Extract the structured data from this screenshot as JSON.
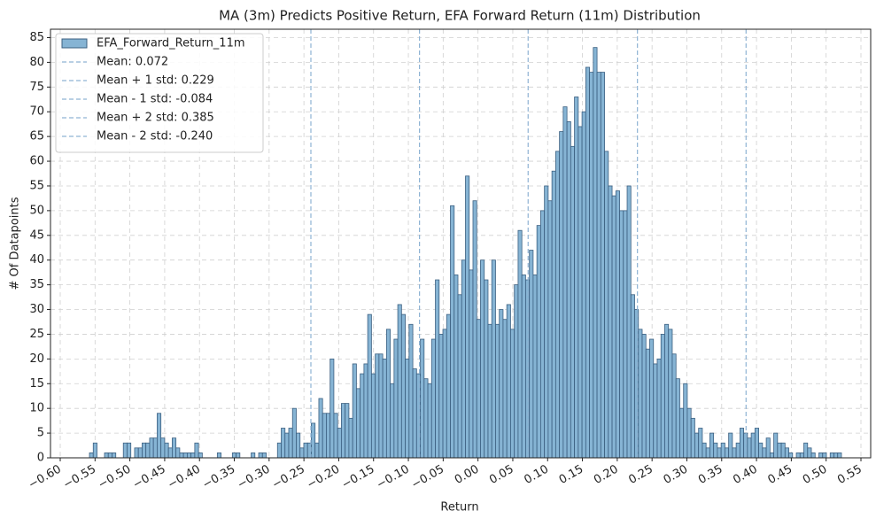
{
  "chart_data": {
    "type": "histogram",
    "title": "MA (3m) Predicts Positive Return, EFA Forward Return (11m) Distribution",
    "x_label": "Return",
    "y_label": "# Of Datapoints",
    "series": [
      {
        "name": "EFA_Forward_Return_11m",
        "color": "#86b4d4",
        "edgecolor": "#3b5f80",
        "bins": [
          -0.558,
          -0.5526,
          -0.5472,
          -0.5418,
          -0.5364,
          -0.531,
          -0.5256,
          -0.5202,
          -0.5148,
          -0.5094,
          -0.504,
          -0.4986,
          -0.4932,
          -0.4878,
          -0.4824,
          -0.477,
          -0.4716,
          -0.4662,
          -0.4608,
          -0.4554,
          -0.45,
          -0.4446,
          -0.4392,
          -0.4338,
          -0.4284,
          -0.423,
          -0.4176,
          -0.4122,
          -0.4068,
          -0.4014,
          -0.396,
          -0.3906,
          -0.3852,
          -0.3798,
          -0.3744,
          -0.369,
          -0.3636,
          -0.3582,
          -0.3528,
          -0.3474,
          -0.342,
          -0.3366,
          -0.3312,
          -0.3258,
          -0.3204,
          -0.315,
          -0.3096,
          -0.3042,
          -0.2988,
          -0.2934,
          -0.288,
          -0.2826,
          -0.2772,
          -0.2718,
          -0.2664,
          -0.261,
          -0.2556,
          -0.2502,
          -0.2448,
          -0.2394,
          -0.234,
          -0.2286,
          -0.2232,
          -0.2178,
          -0.2124,
          -0.207,
          -0.2016,
          -0.1962,
          -0.1908,
          -0.1854,
          -0.18,
          -0.1746,
          -0.1692,
          -0.1638,
          -0.1584,
          -0.153,
          -0.1476,
          -0.1422,
          -0.1368,
          -0.1314,
          -0.126,
          -0.1206,
          -0.1152,
          -0.1098,
          -0.1044,
          -0.099,
          -0.0936,
          -0.0882,
          -0.0828,
          -0.0774,
          -0.072,
          -0.0666,
          -0.0612,
          -0.0558,
          -0.0504,
          -0.045,
          -0.0396,
          -0.0342,
          -0.0288,
          -0.0234,
          -0.018,
          -0.0126,
          -0.0072,
          -0.0018,
          0.0036,
          0.009,
          0.0144,
          0.0198,
          0.0252,
          0.0306,
          0.036,
          0.0414,
          0.0468,
          0.0522,
          0.0576,
          0.063,
          0.0684,
          0.0738,
          0.0792,
          0.0846,
          0.09,
          0.0954,
          0.1008,
          0.1062,
          0.1116,
          0.117,
          0.1224,
          0.1278,
          0.1332,
          0.1386,
          0.144,
          0.1494,
          0.1548,
          0.1602,
          0.1656,
          0.171,
          0.1764,
          0.1818,
          0.1872,
          0.1926,
          0.198,
          0.2034,
          0.2088,
          0.2142,
          0.2196,
          0.225,
          0.2304,
          0.2358,
          0.2412,
          0.2466,
          0.252,
          0.2574,
          0.2628,
          0.2682,
          0.2736,
          0.279,
          0.2844,
          0.2898,
          0.2952,
          0.3006,
          0.306,
          0.3114,
          0.3168,
          0.3222,
          0.3276,
          0.333,
          0.3384,
          0.3438,
          0.3492,
          0.3546,
          0.36,
          0.3654,
          0.3708,
          0.3762,
          0.3816,
          0.387,
          0.3924,
          0.3978,
          0.4032,
          0.4086,
          0.414,
          0.4194,
          0.4248,
          0.4302,
          0.4356,
          0.441,
          0.4464,
          0.4518,
          0.4572,
          0.4626,
          0.468,
          0.4734,
          0.4788,
          0.4842,
          0.4896,
          0.495,
          0.5004,
          0.5058,
          0.5112,
          0.5166,
          0.522
        ],
        "values": [
          1,
          3,
          0,
          0,
          1,
          1,
          1,
          0,
          0,
          3,
          3,
          0,
          2,
          2,
          3,
          3,
          4,
          4,
          9,
          4,
          3,
          2,
          4,
          2,
          1,
          1,
          1,
          1,
          3,
          1,
          0,
          0,
          0,
          0,
          1,
          0,
          0,
          0,
          1,
          1,
          0,
          0,
          0,
          1,
          0,
          1,
          1,
          0,
          0,
          0,
          3,
          6,
          5,
          6,
          10,
          5,
          2,
          3,
          3,
          7,
          3,
          12,
          9,
          9,
          20,
          9,
          6,
          11,
          11,
          8,
          19,
          14,
          17,
          19,
          29,
          17,
          21,
          21,
          20,
          26,
          15,
          24,
          31,
          29,
          20,
          27,
          18,
          17,
          24,
          16,
          15,
          24,
          36,
          25,
          26,
          29,
          51,
          37,
          33,
          40,
          57,
          38,
          52,
          28,
          40,
          36,
          27,
          40,
          27,
          30,
          28,
          31,
          26,
          35,
          46,
          37,
          36,
          42,
          37,
          47,
          50,
          55,
          52,
          58,
          62,
          66,
          71,
          68,
          63,
          73,
          67,
          70,
          79,
          78,
          83,
          78,
          78,
          62,
          55,
          53,
          54,
          50,
          50,
          55,
          33,
          30,
          26,
          25,
          22,
          24,
          19,
          20,
          25,
          27,
          26,
          21,
          16,
          10,
          15,
          10,
          8,
          5,
          6,
          3,
          2,
          5,
          3,
          2,
          3,
          2,
          5,
          2,
          3,
          6,
          5,
          4,
          5,
          6,
          3,
          2,
          4,
          1,
          5,
          3,
          3,
          2,
          1,
          0,
          1,
          1,
          3,
          2,
          1,
          0,
          1,
          1,
          0,
          1,
          1,
          1
        ]
      }
    ],
    "vlines": [
      {
        "label": "Mean: 0.072",
        "value": 0.072
      },
      {
        "label": "Mean + 1 std: 0.229",
        "value": 0.229
      },
      {
        "label": "Mean - 1 std: -0.084",
        "value": -0.084
      },
      {
        "label": "Mean + 2 std: 0.385",
        "value": 0.385
      },
      {
        "label": "Mean - 2 std: -0.240",
        "value": -0.24
      }
    ],
    "vline_color": "#8fb3d4",
    "xlim": [
      -0.614,
      0.564
    ],
    "ylim": [
      0,
      86.7
    ],
    "xticks": [
      {
        "value": -0.6,
        "label": "−0.60"
      },
      {
        "value": -0.55,
        "label": "−0.55"
      },
      {
        "value": -0.5,
        "label": "−0.50"
      },
      {
        "value": -0.45,
        "label": "−0.45"
      },
      {
        "value": -0.4,
        "label": "−0.40"
      },
      {
        "value": -0.35,
        "label": "−0.35"
      },
      {
        "value": -0.3,
        "label": "−0.30"
      },
      {
        "value": -0.25,
        "label": "−0.25"
      },
      {
        "value": -0.2,
        "label": "−0.20"
      },
      {
        "value": -0.15,
        "label": "−0.15"
      },
      {
        "value": -0.1,
        "label": "−0.10"
      },
      {
        "value": -0.05,
        "label": "−0.05"
      },
      {
        "value": 0,
        "label": "0.00"
      },
      {
        "value": 0.05,
        "label": "0.05"
      },
      {
        "value": 0.1,
        "label": "0.10"
      },
      {
        "value": 0.15,
        "label": "0.15"
      },
      {
        "value": 0.2,
        "label": "0.20"
      },
      {
        "value": 0.25,
        "label": "0.25"
      },
      {
        "value": 0.3,
        "label": "0.30"
      },
      {
        "value": 0.35,
        "label": "0.35"
      },
      {
        "value": 0.4,
        "label": "0.40"
      },
      {
        "value": 0.45,
        "label": "0.45"
      },
      {
        "value": 0.5,
        "label": "0.50"
      },
      {
        "value": 0.55,
        "label": "0.55"
      }
    ],
    "yticks": [
      0,
      5,
      10,
      15,
      20,
      25,
      30,
      35,
      40,
      45,
      50,
      55,
      60,
      65,
      70,
      75,
      80,
      85
    ],
    "grid": true,
    "legend": "upper left"
  }
}
